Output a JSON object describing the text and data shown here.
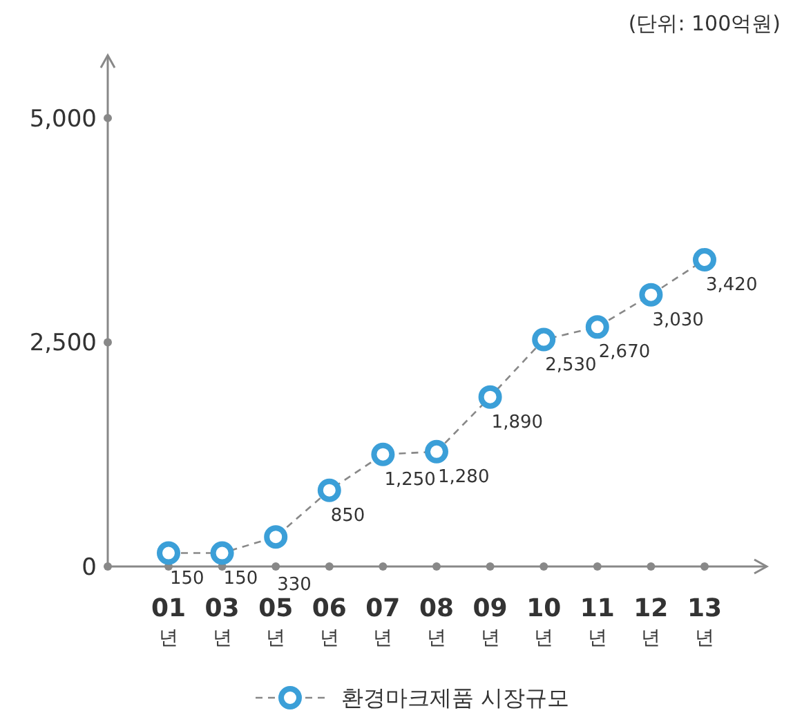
{
  "chart_data": {
    "type": "line",
    "subtitle": "(단위: 100억원)",
    "categories": [
      "01\n년",
      "03\n년",
      "05\n년",
      "06\n년",
      "07\n년",
      "08\n년",
      "09\n년",
      "10\n년",
      "11\n년",
      "12\n년",
      "13\n년"
    ],
    "series": [
      {
        "name": "환경마크제품 시장규모",
        "color": "#3b9fd8",
        "values": [
          150,
          150,
          330,
          850,
          1250,
          1280,
          1890,
          2530,
          2670,
          3030,
          3420
        ],
        "value_labels": [
          "150",
          "150",
          "330",
          "850",
          "1,250",
          "1,280",
          "1,890",
          "2,530",
          "2,670",
          "3,030",
          "3,420"
        ]
      }
    ],
    "ylim": [
      0,
      5700
    ],
    "yticks": [
      {
        "value": 0,
        "label": "0"
      },
      {
        "value": 2500,
        "label": "2,500"
      },
      {
        "value": 5000,
        "label": "5,000"
      }
    ],
    "marker": "circle",
    "line_style": "dashed",
    "legend": "bottom",
    "grid": false
  }
}
